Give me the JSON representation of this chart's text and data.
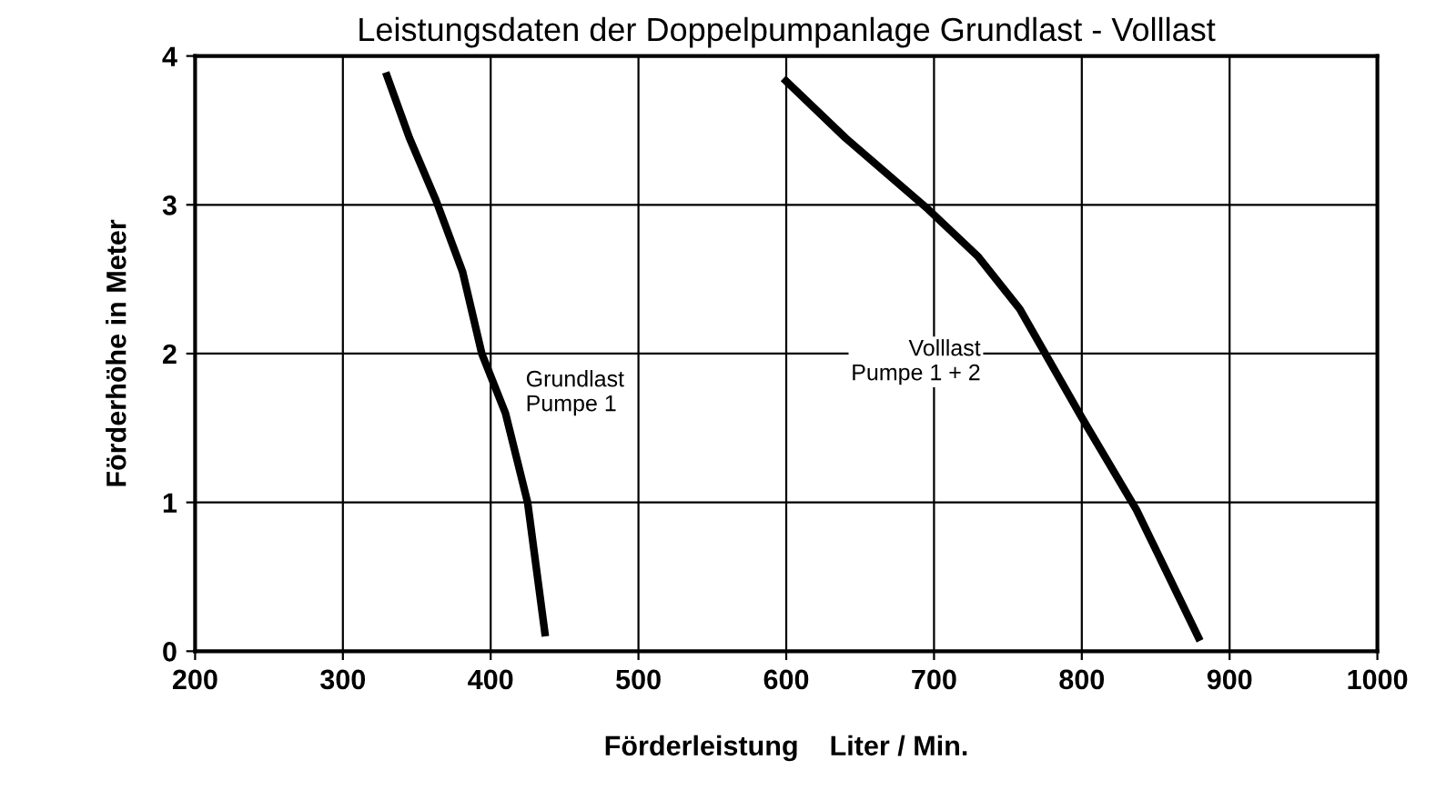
{
  "chart_data": {
    "type": "line",
    "title": "Leistungsdaten der Doppelpumpanlage Grundlast - Volllast",
    "xlabel": "Förderleistung    Liter / Min.",
    "ylabel": "Förderhöhe in Meter",
    "series": [
      {
        "color": "#000000",
        "x": [
          329,
          345,
          363,
          381,
          394,
          410,
          425,
          437
        ],
        "values": [
          3.89,
          3.45,
          3.03,
          2.55,
          2.0,
          1.6,
          1.0,
          0.1
        ]
      },
      {
        "color": "#000000",
        "x": [
          598,
          640,
          696,
          730,
          758,
          800,
          837,
          880
        ],
        "values": [
          3.85,
          3.45,
          2.97,
          2.65,
          2.3,
          1.57,
          0.95,
          0.07
        ]
      }
    ],
    "annotations": [
      "Grundlast\nPumpe 1",
      "Volllast\nPumpe 1 + 2"
    ],
    "xlim": [
      200,
      1000
    ],
    "xticks": [
      200,
      300,
      400,
      500,
      600,
      700,
      800,
      900,
      1000
    ],
    "ylim": [
      0,
      4
    ],
    "yticks": [
      0,
      1,
      2,
      3,
      4
    ],
    "grid": true,
    "legend": false,
    "marker": "none",
    "line_style": "solid"
  }
}
